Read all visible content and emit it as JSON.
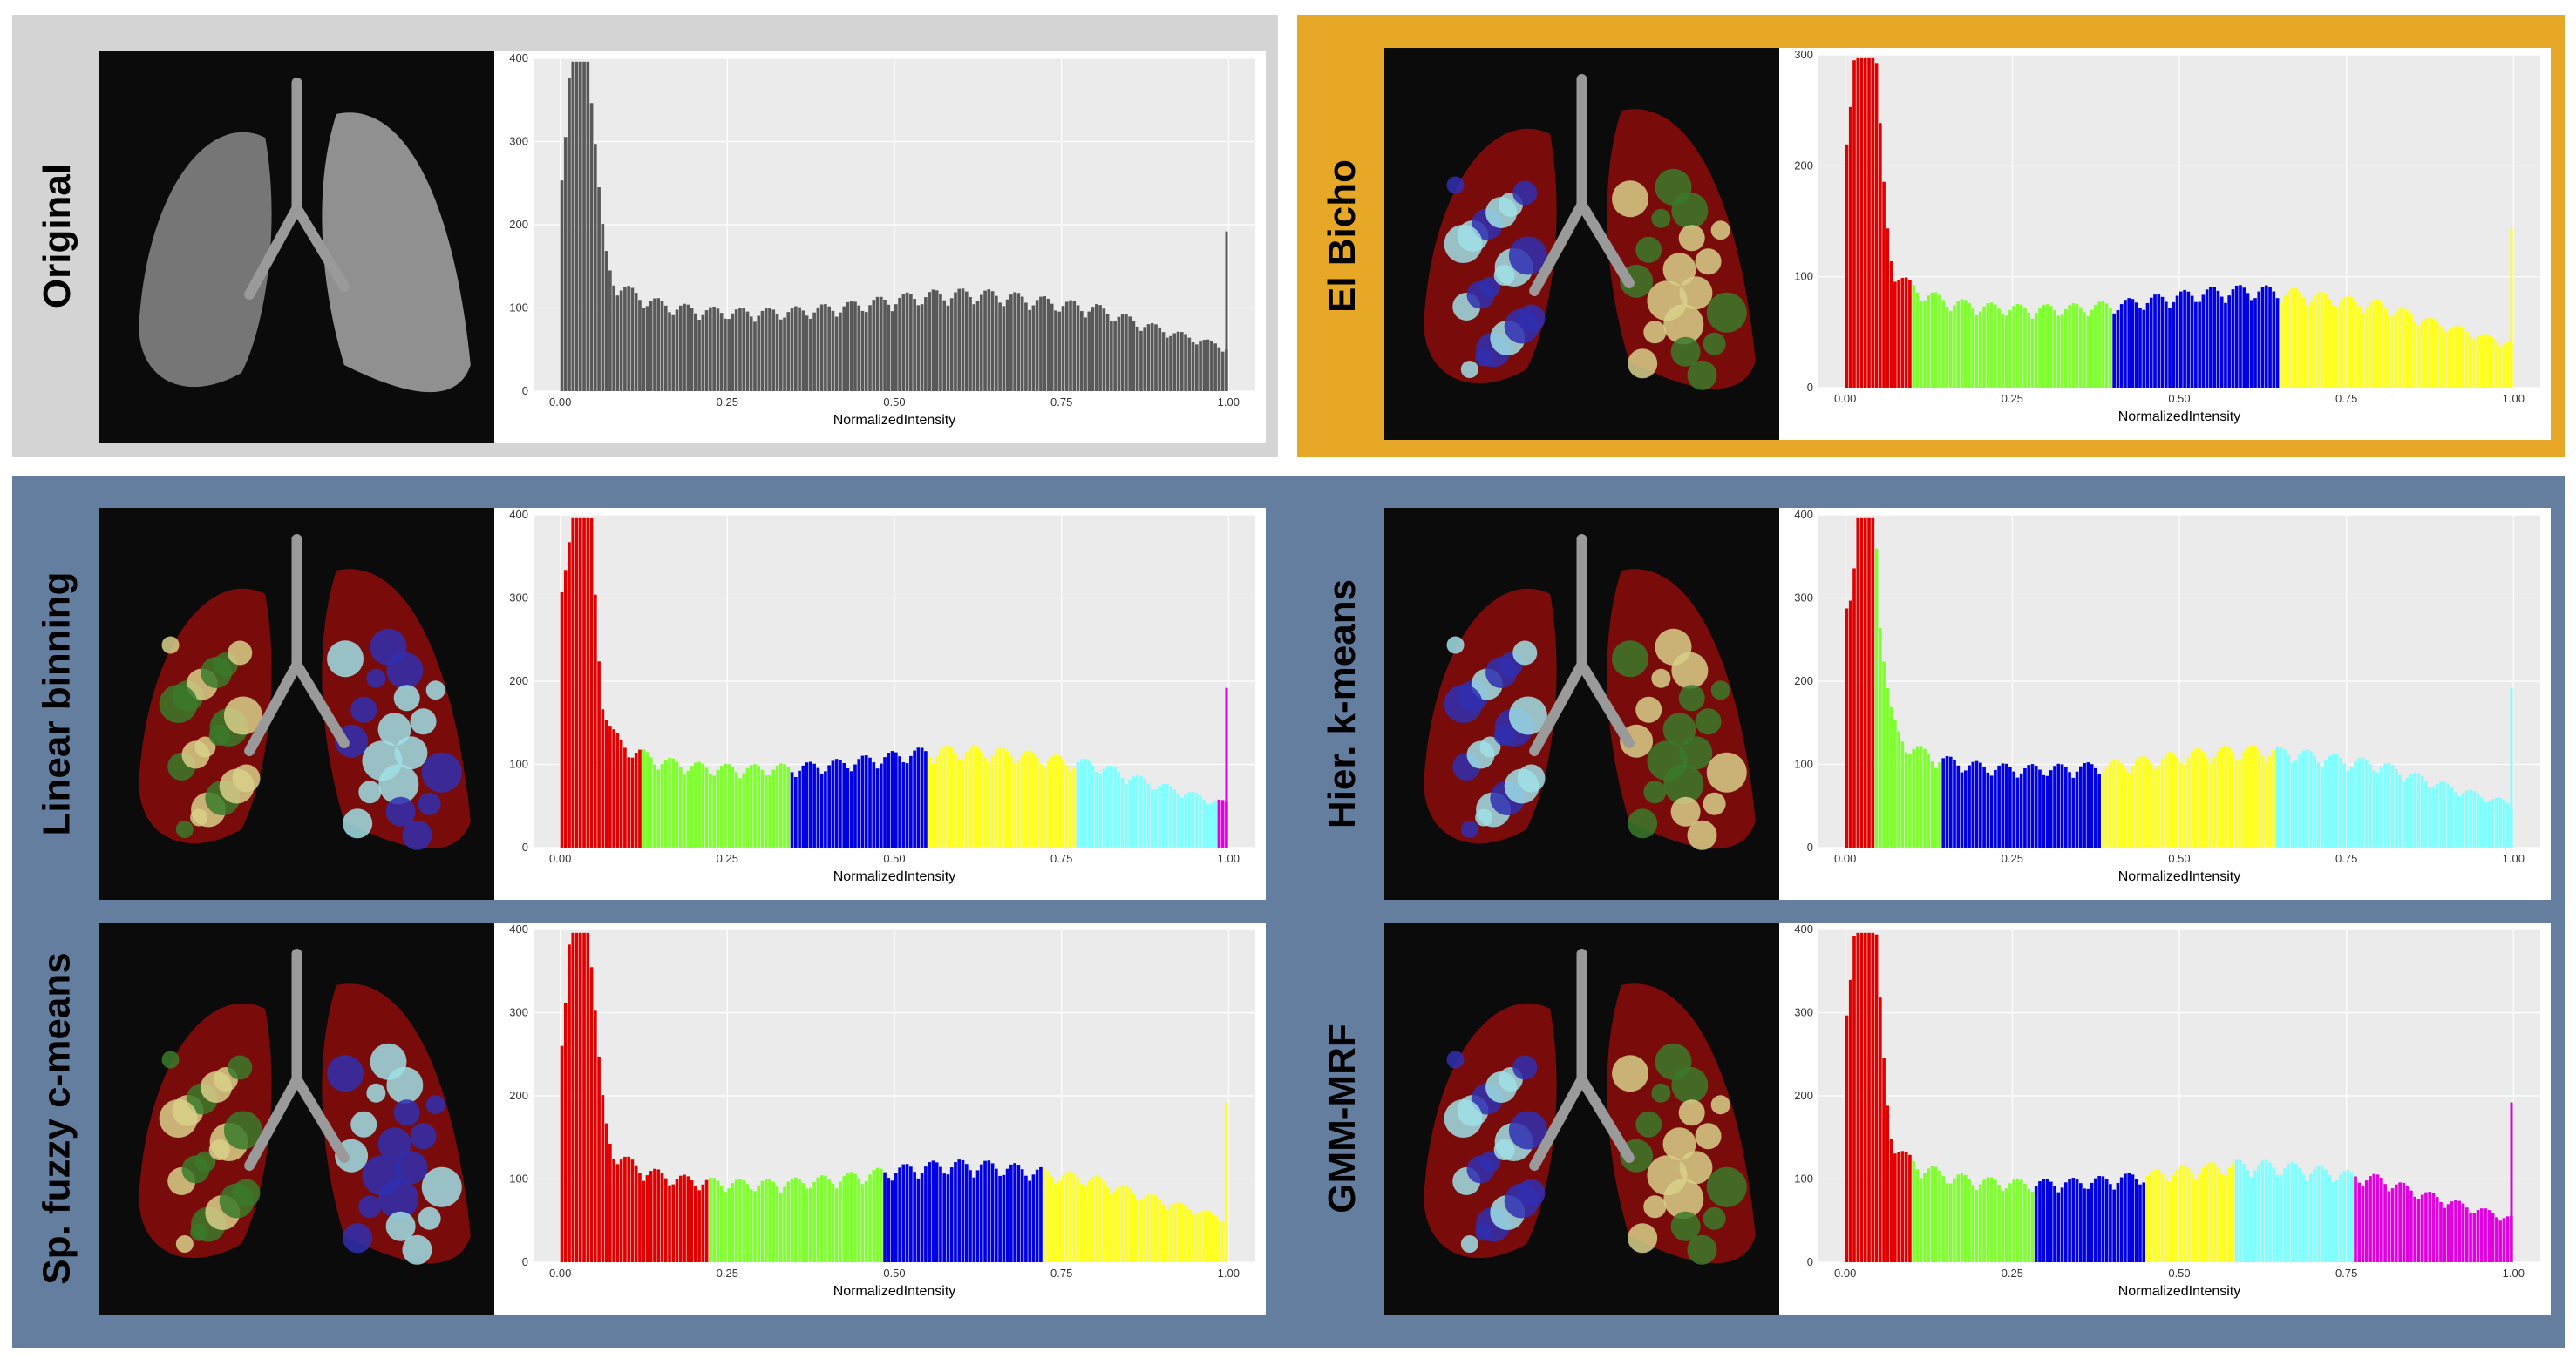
{
  "colors": {
    "orig_bg": "#d4d4d4",
    "bicho_bg": "#e8a827",
    "methods_bg": "#647e9f",
    "plot_panel": "#ebebeb",
    "grid": "#ffffff",
    "lung_dark_red": "#7a0b0b",
    "bar_gray": "#595959"
  },
  "titles": {
    "original": "Original",
    "el_bicho": "El Bicho",
    "linear": "Linear binning",
    "hier": "Hier. k-means",
    "fuzzy": "Sp. fuzzy c-means",
    "gmm": "GMM-MRF"
  },
  "chart_data": [
    {
      "type": "bar",
      "panel": "original",
      "xlabel": "NormalizedIntensity",
      "ylabel": "",
      "xlim": [
        0,
        1.0
      ],
      "ylim": [
        0,
        400
      ],
      "x_ticks": [
        "0.00",
        "0.25",
        "0.50",
        "0.75",
        "1.00"
      ],
      "y_ticks": [
        "0",
        "100",
        "200",
        "300",
        "400"
      ],
      "bins": [
        [
          0.0,
          0.04,
          "#595959"
        ],
        [
          0.04,
          0.99,
          "#595959"
        ],
        [
          0.99,
          1.0,
          "#595959"
        ]
      ]
    },
    {
      "type": "bar",
      "panel": "el_bicho",
      "xlabel": "NormalizedIntensity",
      "ylabel": "",
      "xlim": [
        0,
        1.0
      ],
      "ylim": [
        0,
        300
      ],
      "x_ticks": [
        "0.00",
        "0.25",
        "0.50",
        "0.75",
        "1.00"
      ],
      "y_ticks": [
        "0",
        "100",
        "200",
        "300"
      ],
      "bins": [
        [
          0.0,
          0.1,
          "#e00000"
        ],
        [
          0.1,
          0.4,
          "#80ff30"
        ],
        [
          0.4,
          0.65,
          "#0000e0"
        ],
        [
          0.65,
          1.0,
          "#ffff20"
        ]
      ]
    },
    {
      "type": "bar",
      "panel": "linear",
      "xlabel": "NormalizedIntensity",
      "ylabel": "",
      "xlim": [
        0,
        1.0
      ],
      "ylim": [
        0,
        400
      ],
      "x_ticks": [
        "0.00",
        "0.25",
        "0.50",
        "0.75",
        "1.00"
      ],
      "y_ticks": [
        "0",
        "100",
        "200",
        "300",
        "400"
      ],
      "bins": [
        [
          0.0,
          0.12,
          "#e00000"
        ],
        [
          0.12,
          0.34,
          "#80ff30"
        ],
        [
          0.34,
          0.55,
          "#0000e0"
        ],
        [
          0.55,
          0.77,
          "#ffff20"
        ],
        [
          0.77,
          0.98,
          "#80ffff"
        ],
        [
          0.98,
          1.0,
          "#e000e0"
        ]
      ]
    },
    {
      "type": "bar",
      "panel": "hier",
      "xlabel": "NormalizedIntensity",
      "ylabel": "",
      "xlim": [
        0,
        1.0
      ],
      "ylim": [
        0,
        400
      ],
      "x_ticks": [
        "0.00",
        "0.25",
        "0.50",
        "0.75",
        "1.00"
      ],
      "y_ticks": [
        "0",
        "100",
        "200",
        "300",
        "400"
      ],
      "bins": [
        [
          0.0,
          0.04,
          "#e00000"
        ],
        [
          0.04,
          0.14,
          "#80ff30"
        ],
        [
          0.14,
          0.38,
          "#0000e0"
        ],
        [
          0.38,
          0.64,
          "#ffff20"
        ],
        [
          0.64,
          1.0,
          "#80ffff"
        ]
      ]
    },
    {
      "type": "bar",
      "panel": "fuzzy",
      "xlabel": "NormalizedIntensity",
      "ylabel": "",
      "xlim": [
        0,
        1.0
      ],
      "ylim": [
        0,
        400
      ],
      "x_ticks": [
        "0.00",
        "0.25",
        "0.50",
        "0.75",
        "1.00"
      ],
      "y_ticks": [
        "0",
        "100",
        "200",
        "300",
        "400"
      ],
      "bins": [
        [
          0.0,
          0.22,
          "#e00000"
        ],
        [
          0.22,
          0.48,
          "#80ff30"
        ],
        [
          0.48,
          0.72,
          "#0000e0"
        ],
        [
          0.72,
          1.0,
          "#ffff20"
        ]
      ]
    },
    {
      "type": "bar",
      "panel": "gmm",
      "xlabel": "NormalizedIntensity",
      "ylabel": "",
      "xlim": [
        0,
        1.0
      ],
      "ylim": [
        0,
        400
      ],
      "x_ticks": [
        "0.00",
        "0.25",
        "0.50",
        "0.75",
        "1.00"
      ],
      "y_ticks": [
        "0",
        "100",
        "200",
        "300",
        "400"
      ],
      "bins": [
        [
          0.0,
          0.1,
          "#e00000"
        ],
        [
          0.1,
          0.28,
          "#80ff30"
        ],
        [
          0.28,
          0.45,
          "#0000e0"
        ],
        [
          0.45,
          0.58,
          "#ffff20"
        ],
        [
          0.58,
          0.76,
          "#80ffff"
        ],
        [
          0.76,
          1.0,
          "#e000e0"
        ]
      ]
    }
  ]
}
